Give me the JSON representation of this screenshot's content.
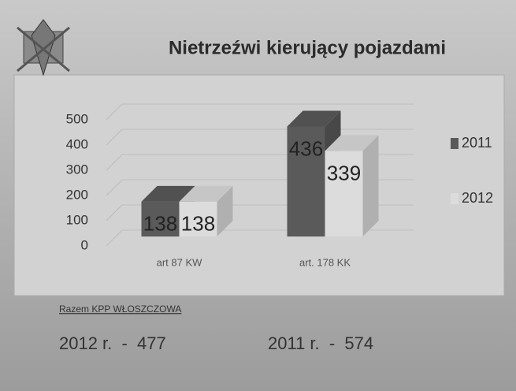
{
  "chart_data": {
    "type": "bar",
    "title": "Nietrzeźwi kierujący pojazdami",
    "categories": [
      "art 87  KW",
      "art.  178 KK"
    ],
    "series": [
      {
        "name": "2011",
        "color": "#5a5a5a",
        "values": [
          138,
          436
        ]
      },
      {
        "name": "2012",
        "color": "#dcdcdc",
        "values": [
          138,
          339
        ]
      }
    ],
    "ylim": [
      0,
      500
    ],
    "yticks": [
      0,
      100,
      200,
      300,
      400,
      500
    ],
    "grid": true,
    "legend": "right"
  },
  "summary": {
    "heading": "Razem KPP WŁOSZCZOWA",
    "lines": [
      "2012 r.  -  477",
      "2011 r.  -  574"
    ]
  }
}
